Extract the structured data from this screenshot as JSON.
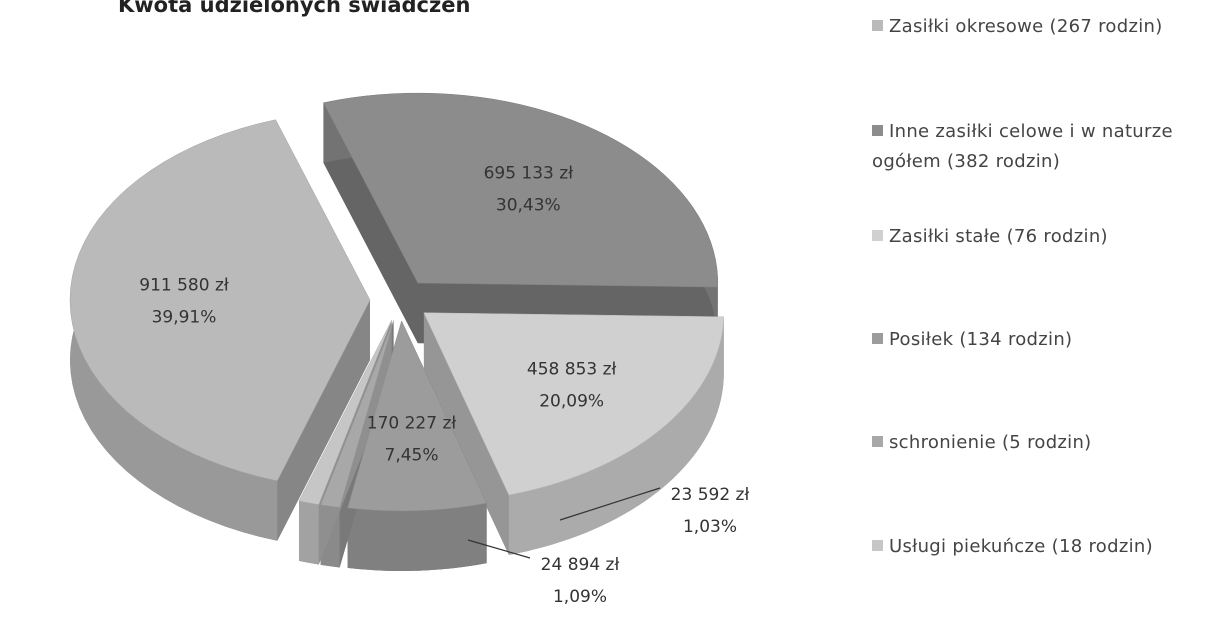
{
  "chart_data": {
    "type": "pie",
    "title": "Kwota udzielonych świadczeń",
    "categories": [
      "Zasiłki okresowe (267 rodzin)",
      "Inne zasiłki celowe i w naturze ogółem (382 rodzin)",
      "Zasiłki stałe (76 rodzin)",
      "Posiłek (134 rodzin)",
      "schronienie (5 rodzin)",
      "Usługi piekuńcze (18 rodzin)"
    ],
    "values": [
      911580,
      695133,
      458853,
      170227,
      23592,
      24894
    ],
    "value_labels": [
      "911 580 zł",
      "695 133 zł",
      "458 853 zł",
      "170 227 zł",
      "23 592 zł",
      "24 894 zł"
    ],
    "percentages": [
      39.91,
      30.43,
      20.09,
      7.45,
      1.03,
      1.09
    ],
    "percentage_labels": [
      "39,91%",
      "30,43%",
      "20,09%",
      "7,45%",
      "1,03%",
      "1,09%"
    ],
    "colors": [
      "#bababa",
      "#8c8c8c",
      "#d0d0d0",
      "#9c9c9c",
      "#a8a8a8",
      "#c6c6c6"
    ],
    "legend": "right"
  }
}
